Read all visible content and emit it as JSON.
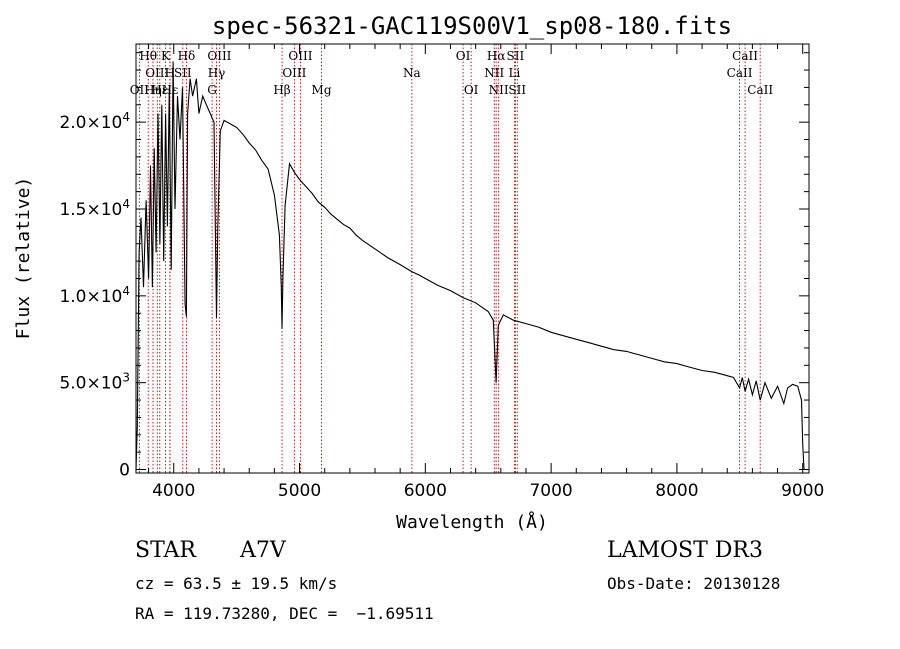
{
  "chart_data": {
    "type": "line",
    "title": "spec-56321-GAC119S00V1_sp08-180.fits",
    "xlabel": "Wavelength (Å)",
    "ylabel": "Flux (relative)",
    "xlim": [
      3700,
      9050
    ],
    "ylim": [
      -200,
      24500
    ],
    "x_ticks": [
      4000,
      5000,
      6000,
      7000,
      8000,
      9000
    ],
    "y_ticks": [
      {
        "value": 0,
        "label": "0",
        "mant": "",
        "exp": ""
      },
      {
        "value": 5000,
        "label": "",
        "mant": "5.0×10",
        "exp": "3"
      },
      {
        "value": 10000,
        "label": "",
        "mant": "1.0×10",
        "exp": "4"
      },
      {
        "value": 15000,
        "label": "",
        "mant": "1.5×10",
        "exp": "4"
      },
      {
        "value": 20000,
        "label": "",
        "mant": "2.0×10",
        "exp": "4"
      }
    ],
    "series": [
      {
        "name": "spectrum",
        "x": [
          3700,
          3710,
          3725,
          3740,
          3760,
          3780,
          3800,
          3815,
          3830,
          3845,
          3860,
          3875,
          3890,
          3905,
          3920,
          3935,
          3950,
          3965,
          3980,
          3995,
          4010,
          4030,
          4050,
          4070,
          4090,
          4101,
          4110,
          4130,
          4150,
          4180,
          4200,
          4230,
          4260,
          4290,
          4320,
          4340,
          4350,
          4370,
          4400,
          4450,
          4500,
          4550,
          4600,
          4650,
          4700,
          4750,
          4800,
          4840,
          4855,
          4861,
          4868,
          4885,
          4920,
          4960,
          5000,
          5050,
          5100,
          5150,
          5200,
          5250,
          5300,
          5350,
          5400,
          5450,
          5500,
          5600,
          5700,
          5800,
          5890,
          5950,
          6000,
          6100,
          6200,
          6300,
          6400,
          6500,
          6540,
          6563,
          6580,
          6620,
          6700,
          6800,
          6900,
          7000,
          7100,
          7200,
          7300,
          7400,
          7500,
          7600,
          7700,
          7800,
          7900,
          8000,
          8100,
          8200,
          8300,
          8400,
          8450,
          8498,
          8520,
          8542,
          8570,
          8600,
          8630,
          8662,
          8700,
          8750,
          8800,
          8850,
          8880,
          8920,
          8960,
          8990,
          9000,
          9010
        ],
        "values": [
          0,
          2500,
          12500,
          14500,
          10500,
          15500,
          11000,
          17500,
          10500,
          18500,
          12500,
          20500,
          13000,
          21000,
          12000,
          20500,
          14000,
          22000,
          11500,
          23500,
          15000,
          21500,
          19000,
          22000,
          9500,
          8800,
          20500,
          22500,
          21500,
          22500,
          20500,
          21500,
          21000,
          20500,
          20000,
          8700,
          14000,
          19500,
          20100,
          19900,
          19700,
          19300,
          18800,
          18400,
          17800,
          17300,
          15800,
          13500,
          10500,
          8100,
          11000,
          15200,
          17600,
          17100,
          16700,
          16300,
          15900,
          15400,
          15100,
          14700,
          14400,
          14100,
          13900,
          13500,
          13200,
          12700,
          12200,
          11800,
          11400,
          11200,
          11000,
          10600,
          10300,
          9900,
          9600,
          9100,
          8600,
          5000,
          8300,
          8900,
          8600,
          8400,
          8200,
          7900,
          7700,
          7500,
          7300,
          7100,
          6900,
          6800,
          6600,
          6400,
          6200,
          6100,
          5900,
          5700,
          5600,
          5400,
          5300,
          4700,
          5300,
          4500,
          5200,
          4300,
          5100,
          4000,
          5000,
          4100,
          4800,
          3800,
          4700,
          4900,
          4800,
          4000,
          1500,
          0
        ]
      }
    ],
    "emission_lines": [
      {
        "name": "OII",
        "wavelength": 3727,
        "label_row": 2
      },
      {
        "name": "Hθ",
        "wavelength": 3797,
        "label_row": 0
      },
      {
        "name": "OIII",
        "wavelength": 3869,
        "label_row": 1
      },
      {
        "name": "Hη",
        "wavelength": 3835,
        "label_row": 2
      },
      {
        "name": "Hε",
        "wavelength": 3889,
        "label_row": 2
      },
      {
        "name": "K",
        "wavelength": 3934,
        "label_row": 0
      },
      {
        "name": "H",
        "wavelength": 3969,
        "label_row": 1
      },
      {
        "name": "Hε",
        "wavelength": 3970,
        "label_row": 2
      },
      {
        "name": "Hδ",
        "wavelength": 4101,
        "label_row": 0
      },
      {
        "name": "SII",
        "wavelength": 4072,
        "label_row": 1
      },
      {
        "name": "G",
        "wavelength": 4305,
        "label_row": 2
      },
      {
        "name": "OIII",
        "wavelength": 4363,
        "label_row": 0
      },
      {
        "name": "Hγ",
        "wavelength": 4340,
        "label_row": 1
      },
      {
        "name": "Hβ",
        "wavelength": 4861,
        "label_row": 2
      },
      {
        "name": "OIII",
        "wavelength": 5007,
        "label_row": 0
      },
      {
        "name": "OIII",
        "wavelength": 4959,
        "label_row": 1
      },
      {
        "name": "Mg",
        "wavelength": 5175,
        "label_row": 2
      },
      {
        "name": "Na",
        "wavelength": 5893,
        "label_row": 1
      },
      {
        "name": "OI",
        "wavelength": 6300,
        "label_row": 0
      },
      {
        "name": "OI",
        "wavelength": 6364,
        "label_row": 2
      },
      {
        "name": "Hα",
        "wavelength": 6563,
        "label_row": 0
      },
      {
        "name": "NII",
        "wavelength": 6548,
        "label_row": 1
      },
      {
        "name": "NII",
        "wavelength": 6583,
        "label_row": 2
      },
      {
        "name": "SII",
        "wavelength": 6716,
        "label_row": 0
      },
      {
        "name": "Li",
        "wavelength": 6708,
        "label_row": 1
      },
      {
        "name": "SII",
        "wavelength": 6731,
        "label_row": 2
      },
      {
        "name": "CaII",
        "wavelength": 8542,
        "label_row": 0
      },
      {
        "name": "CaII",
        "wavelength": 8498,
        "label_row": 1
      },
      {
        "name": "CaII",
        "wavelength": 8662,
        "label_row": 2
      }
    ]
  },
  "info": {
    "class": "STAR",
    "subclass": "A7V",
    "survey": "LAMOST DR3",
    "redshift_line": "cz = 63.5 ± 19.5 km/s",
    "obs_date_line": "Obs-Date: 20130128",
    "coords_line": "RA = 119.73280, DEC =  −1.69511"
  },
  "colors": {
    "spectrum": "#000000",
    "line_marker": "#c00000",
    "axis": "#000000"
  }
}
